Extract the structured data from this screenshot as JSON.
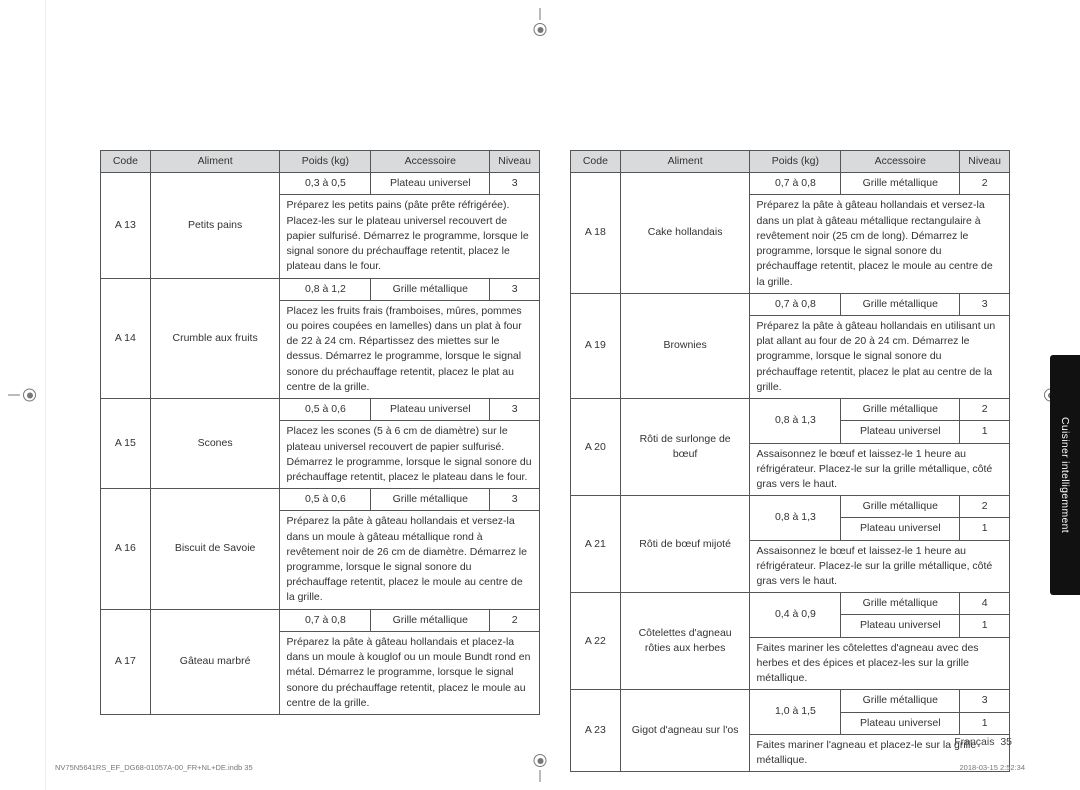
{
  "sideTab": "Cuisiner intelligemment",
  "pageLabel": "Français",
  "pageNum": "35",
  "footer": {
    "file": "NV75N5641RS_EF_DG68-01057A-00_FR+NL+DE.indb   35",
    "stamp": "2018-03-15   2:52:34"
  },
  "headers": {
    "code": "Code",
    "aliment": "Aliment",
    "poids": "Poids (kg)",
    "accessoire": "Accessoire",
    "niveau": "Niveau"
  },
  "leftRows": [
    {
      "code": "A 13",
      "aliment": "Petits pains",
      "poids": "0,3 à 0,5",
      "accessoire": "Plateau universel",
      "niveau": "3",
      "instr": "Préparez les petits pains (pâte prête réfrigérée). Placez-les sur le plateau universel recouvert de papier sulfurisé. Démarrez le programme, lorsque le signal sonore du préchauffage retentit, placez le plateau dans le four."
    },
    {
      "code": "A 14",
      "aliment": "Crumble aux fruits",
      "poids": "0,8 à 1,2",
      "accessoire": "Grille métallique",
      "niveau": "3",
      "instr": "Placez les fruits frais (framboises, mûres, pommes ou poires coupées en lamelles) dans un plat à four de 22 à 24 cm. Répartissez des miettes sur le dessus. Démarrez le programme, lorsque le signal sonore du préchauffage retentit, placez le plat au centre de la grille."
    },
    {
      "code": "A 15",
      "aliment": "Scones",
      "poids": "0,5 à 0,6",
      "accessoire": "Plateau universel",
      "niveau": "3",
      "instr": "Placez les scones (5 à 6 cm de diamètre) sur le plateau universel recouvert de papier sulfurisé. Démarrez le programme, lorsque le signal sonore du préchauffage retentit, placez le plateau dans le four."
    },
    {
      "code": "A 16",
      "aliment": "Biscuit de Savoie",
      "poids": "0,5 à 0,6",
      "accessoire": "Grille métallique",
      "niveau": "3",
      "instr": "Préparez la pâte à gâteau hollandais et versez-la dans un moule à gâteau métallique rond à revêtement noir de 26 cm de diamètre. Démarrez le programme, lorsque le signal sonore du préchauffage retentit, placez le moule au centre de la grille."
    },
    {
      "code": "A 17",
      "aliment": "Gâteau marbré",
      "poids": "0,7 à 0,8",
      "accessoire": "Grille métallique",
      "niveau": "2",
      "instr": "Préparez la pâte à gâteau hollandais et placez-la dans un moule à kouglof ou un moule Bundt rond en métal. Démarrez le programme, lorsque le signal sonore du préchauffage retentit, placez le moule au centre de la grille."
    }
  ],
  "rightRows": [
    {
      "code": "A 18",
      "aliment": "Cake hollandais",
      "params": [
        {
          "poids": "0,7 à 0,8",
          "accessoire": "Grille métallique",
          "niveau": "2"
        }
      ],
      "instr": "Préparez la pâte à gâteau hollandais et versez-la dans un plat à gâteau métallique rectangulaire à revêtement noir (25 cm de long). Démarrez le programme, lorsque le signal sonore du préchauffage retentit, placez le moule au centre de la grille."
    },
    {
      "code": "A 19",
      "aliment": "Brownies",
      "params": [
        {
          "poids": "0,7 à 0,8",
          "accessoire": "Grille métallique",
          "niveau": "3"
        }
      ],
      "instr": "Préparez la pâte à gâteau hollandais en utilisant un plat allant au four de 20 à 24 cm. Démarrez le programme, lorsque le signal sonore du préchauffage retentit, placez le plat au centre de la grille."
    },
    {
      "code": "A 20",
      "aliment": "Rôti de surlonge de bœuf",
      "params": [
        {
          "poids": "0,8 à 1,3",
          "accessoire": "Grille métallique",
          "niveau": "2"
        },
        {
          "poids": "",
          "accessoire": "Plateau universel",
          "niveau": "1"
        }
      ],
      "instr": "Assaisonnez le bœuf et laissez-le 1 heure au réfrigérateur. Placez-le sur la grille métallique, côté gras vers le haut."
    },
    {
      "code": "A 21",
      "aliment": "Rôti de bœuf mijoté",
      "params": [
        {
          "poids": "0,8 à 1,3",
          "accessoire": "Grille métallique",
          "niveau": "2"
        },
        {
          "poids": "",
          "accessoire": "Plateau universel",
          "niveau": "1"
        }
      ],
      "instr": "Assaisonnez le bœuf et laissez-le 1 heure au réfrigérateur. Placez-le sur la grille métallique, côté gras vers le haut."
    },
    {
      "code": "A 22",
      "aliment": "Côtelettes d'agneau rôties aux herbes",
      "params": [
        {
          "poids": "0,4 à 0,9",
          "accessoire": "Grille métallique",
          "niveau": "4"
        },
        {
          "poids": "",
          "accessoire": "Plateau universel",
          "niveau": "1"
        }
      ],
      "instr": "Faites mariner les côtelettes d'agneau avec des herbes et des épices et placez-les sur la grille métallique."
    },
    {
      "code": "A 23",
      "aliment": "Gigot d'agneau sur l'os",
      "params": [
        {
          "poids": "1,0 à 1,5",
          "accessoire": "Grille métallique",
          "niveau": "3"
        },
        {
          "poids": "",
          "accessoire": "Plateau universel",
          "niveau": "1"
        }
      ],
      "instr": "Faites mariner l'agneau et placez-le sur la grille métallique."
    }
  ]
}
